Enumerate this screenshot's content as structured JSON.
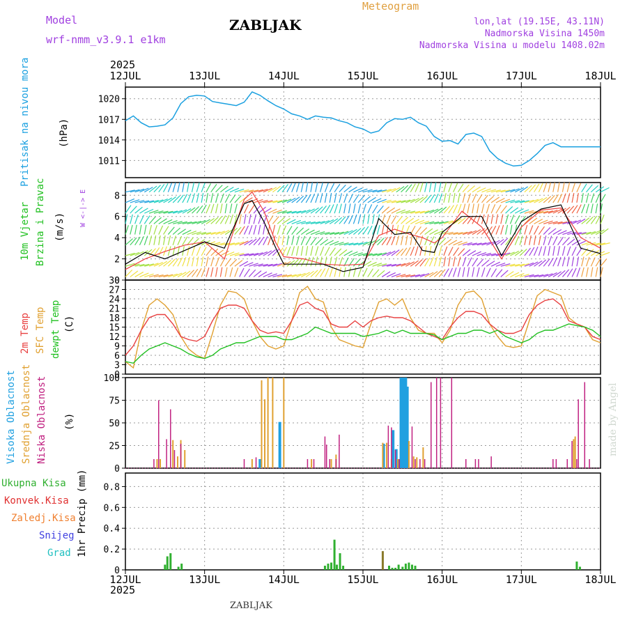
{
  "header": {
    "model_label": "Model",
    "model_name": "wrf-nmm_v3.9.1  e1km",
    "station": "ZABLJAK",
    "meteogram": "Meteogram",
    "lonlat": "lon,lat (19.15E, 43.11N)",
    "altitude": "Nadmorska Visina 1450m",
    "model_altitude": "Nadmorska Visina u modelu 1408.02m",
    "year_top": "2025",
    "year_bottom": "2025",
    "footer": "ZABLJAK",
    "credit": "made by Angel"
  },
  "colors": {
    "pressure": "#1aa0e0",
    "wind_speed": "#000000",
    "wind_gust": "#f04040",
    "t2m": "#e84040",
    "tsfc": "#e0a030",
    "dewpt": "#20c020",
    "high_cloud": "#20a0e0",
    "mid_cloud": "#e0a030",
    "low_cloud": "#c02080",
    "total_precip": "#30b030",
    "conv_precip": "#e03030",
    "frozen_precip": "#f08030",
    "snow": "#4040e0",
    "graupel": "#20c0c0"
  },
  "chart_data": [
    {
      "type": "line",
      "panel": "pressure",
      "ylabel_left": "Pritisak na nivou mora",
      "ylabel_unit": "(hPa)",
      "x_ticks": [
        "12JUL",
        "13JUL",
        "14JUL",
        "15JUL",
        "16JUL",
        "17JUL",
        "18JUL"
      ],
      "xlim_days": [
        0,
        6
      ],
      "y_ticks": [
        1011,
        1014,
        1017,
        1020
      ],
      "ylim": [
        1008.5,
        1021.7
      ],
      "series": [
        {
          "x": [
            0.0,
            0.1,
            0.2,
            0.3,
            0.4,
            0.5,
            0.6,
            0.7,
            0.8,
            0.9,
            1.0,
            1.1,
            1.2,
            1.3,
            1.4,
            1.5,
            1.6,
            1.7,
            1.8,
            1.9,
            2.0,
            2.1,
            2.2,
            2.3,
            2.4,
            2.5,
            2.6,
            2.7,
            2.8,
            2.9,
            3.0,
            3.1,
            3.2,
            3.3,
            3.4,
            3.5,
            3.6,
            3.7,
            3.8,
            3.9,
            4.0,
            4.1,
            4.2,
            4.3,
            4.4,
            4.5,
            4.6,
            4.7,
            4.8,
            4.9,
            5.0,
            5.1,
            5.2,
            5.3,
            5.4,
            5.5,
            5.6,
            5.7,
            5.8,
            5.9,
            6.0
          ],
          "values": [
            1016.8,
            1017.5,
            1016.5,
            1015.9,
            1016.0,
            1016.2,
            1017.2,
            1019.3,
            1020.3,
            1020.5,
            1020.4,
            1019.6,
            1019.4,
            1019.2,
            1019.0,
            1019.5,
            1021.0,
            1020.5,
            1019.7,
            1019.0,
            1018.5,
            1017.8,
            1017.5,
            1017.0,
            1017.5,
            1017.3,
            1017.2,
            1016.8,
            1016.5,
            1015.9,
            1015.6,
            1015.0,
            1015.3,
            1016.5,
            1017.1,
            1017.0,
            1017.3,
            1016.5,
            1016.0,
            1014.5,
            1013.8,
            1013.9,
            1013.4,
            1014.8,
            1015.0,
            1014.5,
            1012.4,
            1011.3,
            1010.6,
            1010.2,
            1010.3,
            1011.0,
            1012.0,
            1013.2,
            1013.6,
            1013.0,
            1013.0,
            1013.0,
            1013.0,
            1013.0,
            1013.0
          ]
        }
      ]
    },
    {
      "type": "line",
      "panel": "wind",
      "ylabel_left": "10m Vjetar",
      "ylabel_left2": "Brzina i Pravac",
      "ylabel_unit": "(m/s)",
      "compass": "W <-|-> E",
      "y_ticks": [
        0,
        2,
        4,
        6,
        8
      ],
      "ylim": [
        0,
        9.2
      ],
      "series": [
        {
          "name": "speed",
          "x": [
            0.0,
            0.25,
            0.5,
            0.75,
            1.0,
            1.25,
            1.4,
            1.5,
            1.6,
            1.75,
            1.9,
            2.0,
            2.25,
            2.5,
            2.75,
            3.0,
            3.2,
            3.4,
            3.6,
            3.75,
            3.9,
            4.0,
            4.25,
            4.5,
            4.75,
            5.0,
            5.25,
            5.5,
            5.75,
            6.0
          ],
          "values": [
            1.5,
            2.6,
            2.0,
            2.8,
            3.6,
            3.0,
            5.5,
            7.2,
            7.5,
            5.5,
            3.0,
            1.5,
            1.5,
            1.5,
            0.8,
            1.2,
            5.8,
            4.3,
            4.5,
            2.8,
            2.6,
            4.5,
            6.0,
            6.0,
            2.3,
            5.5,
            6.7,
            7.1,
            3.0,
            2.5
          ]
        },
        {
          "name": "gust",
          "x": [
            0.0,
            0.25,
            0.5,
            0.75,
            1.0,
            1.25,
            1.4,
            1.5,
            1.6,
            1.75,
            1.9,
            2.0,
            2.25,
            2.5,
            2.75,
            3.0,
            3.2,
            3.4,
            3.6,
            3.75,
            3.9,
            4.0,
            4.25,
            4.5,
            4.75,
            5.0,
            5.25,
            5.5,
            5.75,
            6.0
          ],
          "values": [
            1.0,
            2.0,
            2.7,
            3.3,
            3.6,
            2.0,
            5.4,
            7.6,
            8.3,
            6.5,
            3.5,
            2.2,
            2.0,
            1.5,
            1.4,
            1.5,
            4.2,
            4.8,
            4.3,
            4.0,
            3.5,
            4.0,
            6.5,
            5.0,
            2.0,
            5.0,
            6.6,
            6.8,
            4.0,
            3.0
          ]
        }
      ]
    },
    {
      "type": "line",
      "panel": "temperature",
      "ylabel_left": "2m Temp",
      "ylabel_left2": "SFC Temp",
      "ylabel_left3": "dewpt Temp",
      "ylabel_unit": "(C)",
      "y_ticks": [
        0,
        3,
        6,
        9,
        12,
        15,
        18,
        21,
        24,
        27,
        30
      ],
      "ylim": [
        0,
        30
      ],
      "series": [
        {
          "name": "2m",
          "x": [
            0.0,
            0.1,
            0.2,
            0.3,
            0.4,
            0.5,
            0.6,
            0.7,
            0.8,
            0.9,
            1.0,
            1.1,
            1.2,
            1.3,
            1.4,
            1.5,
            1.6,
            1.7,
            1.8,
            1.9,
            2.0,
            2.1,
            2.2,
            2.3,
            2.4,
            2.5,
            2.6,
            2.7,
            2.8,
            2.9,
            3.0,
            3.1,
            3.2,
            3.3,
            3.4,
            3.5,
            3.6,
            3.7,
            3.8,
            3.9,
            4.0,
            4.1,
            4.2,
            4.3,
            4.4,
            4.5,
            4.6,
            4.7,
            4.8,
            4.9,
            5.0,
            5.1,
            5.2,
            5.3,
            5.4,
            5.5,
            5.6,
            5.7,
            5.8,
            5.9,
            6.0
          ],
          "values": [
            6,
            9,
            14,
            18,
            19,
            19,
            16,
            12,
            11,
            10.5,
            12,
            17,
            21,
            22,
            22,
            21,
            17,
            14,
            13,
            13.5,
            13,
            17,
            22,
            23,
            21,
            20,
            16,
            15,
            15,
            17,
            15,
            17,
            18,
            18.5,
            18,
            18,
            17,
            15,
            13,
            12,
            11,
            15,
            18,
            20,
            20,
            19,
            16,
            14,
            13,
            13,
            14,
            19,
            22,
            23.5,
            24,
            22,
            17,
            16,
            15,
            12,
            11
          ]
        },
        {
          "name": "sfc",
          "x": [
            0.0,
            0.1,
            0.2,
            0.3,
            0.4,
            0.5,
            0.6,
            0.7,
            0.8,
            0.9,
            1.0,
            1.1,
            1.2,
            1.3,
            1.4,
            1.5,
            1.6,
            1.7,
            1.8,
            1.9,
            2.0,
            2.1,
            2.2,
            2.3,
            2.4,
            2.5,
            2.6,
            2.7,
            2.8,
            2.9,
            3.0,
            3.1,
            3.2,
            3.3,
            3.4,
            3.5,
            3.6,
            3.7,
            3.8,
            3.9,
            4.0,
            4.1,
            4.2,
            4.3,
            4.4,
            4.5,
            4.6,
            4.7,
            4.8,
            4.9,
            5.0,
            5.1,
            5.2,
            5.3,
            5.4,
            5.5,
            5.6,
            5.7,
            5.8,
            5.9,
            6.0
          ],
          "values": [
            4,
            2,
            14,
            22,
            24,
            22,
            19,
            12,
            8,
            6,
            5,
            13,
            22,
            26.5,
            26,
            24,
            17,
            12,
            9,
            8,
            9,
            17,
            26,
            28,
            24,
            23,
            15,
            11,
            10,
            9,
            8.5,
            16,
            23,
            24,
            22,
            24,
            18,
            14,
            13,
            13,
            10,
            14,
            22,
            26,
            26.5,
            24,
            16,
            12,
            9,
            8.5,
            9,
            17,
            25,
            27,
            26,
            25,
            18,
            16,
            15,
            11,
            10
          ]
        },
        {
          "name": "dewpt",
          "x": [
            0.0,
            0.1,
            0.2,
            0.3,
            0.4,
            0.5,
            0.6,
            0.7,
            0.8,
            0.9,
            1.0,
            1.1,
            1.2,
            1.3,
            1.4,
            1.5,
            1.6,
            1.7,
            1.8,
            1.9,
            2.0,
            2.1,
            2.2,
            2.3,
            2.4,
            2.5,
            2.6,
            2.7,
            2.8,
            2.9,
            3.0,
            3.1,
            3.2,
            3.3,
            3.4,
            3.5,
            3.6,
            3.7,
            3.8,
            3.9,
            4.0,
            4.1,
            4.2,
            4.3,
            4.4,
            4.5,
            4.6,
            4.7,
            4.8,
            4.9,
            5.0,
            5.1,
            5.2,
            5.3,
            5.4,
            5.5,
            5.6,
            5.7,
            5.8,
            5.9,
            6.0
          ],
          "values": [
            4,
            3.5,
            6,
            8,
            9,
            10,
            9,
            8,
            6.5,
            5.5,
            5,
            6,
            8,
            9,
            10,
            10,
            11,
            12,
            12,
            12,
            11,
            11,
            12,
            13,
            15,
            14,
            13,
            13,
            13,
            13,
            12,
            12.5,
            13,
            14,
            13,
            14,
            13,
            13,
            13,
            12.5,
            11,
            12,
            13,
            13,
            14,
            14,
            13,
            14,
            12,
            11,
            10,
            11,
            13,
            14,
            14,
            15,
            16,
            15.5,
            15,
            14,
            12
          ]
        }
      ]
    },
    {
      "type": "bar",
      "panel": "cloud",
      "ylabel_left": "Visoka Oblacnost",
      "ylabel_left2": "Srednja Oblacnost",
      "ylabel_left3": "Niska Oblacnost",
      "ylabel_unit": "(%)",
      "y_ticks": [
        0,
        25,
        50,
        75,
        100
      ],
      "ylim": [
        0,
        100
      ],
      "series": [
        {
          "name": "high",
          "x": [
            1.7,
            1.95,
            3.26,
            3.38,
            3.42,
            3.46,
            3.48,
            3.5,
            3.52,
            3.54,
            3.56
          ],
          "values": [
            10,
            51,
            27,
            42,
            21,
            10,
            100,
            100,
            100,
            100,
            90
          ]
        },
        {
          "name": "mid",
          "x": [
            0.4,
            0.44,
            0.6,
            0.66,
            0.7,
            0.75,
            1.6,
            1.72,
            1.76,
            1.8,
            1.86,
            2.0,
            2.35,
            2.6,
            2.66,
            3.25,
            3.3,
            3.36,
            3.44,
            3.58,
            3.64,
            3.68,
            3.76,
            5.66,
            5.68
          ],
          "values": [
            10,
            10,
            31,
            13,
            31,
            20,
            10,
            97,
            76,
            100,
            100,
            100,
            10,
            10,
            15,
            28,
            28,
            10,
            10,
            30,
            13,
            12,
            23,
            32,
            35
          ]
        },
        {
          "name": "low",
          "x": [
            0.36,
            0.42,
            0.52,
            0.57,
            0.62,
            0.7,
            1.5,
            1.65,
            2.3,
            2.38,
            2.52,
            2.54,
            2.58,
            2.66,
            2.7,
            3.32,
            3.36,
            3.41,
            3.46,
            3.62,
            3.66,
            3.72,
            3.78,
            3.86,
            3.93,
            3.98,
            4.12,
            4.3,
            4.42,
            4.46,
            4.62,
            5.4,
            5.44,
            5.58,
            5.64,
            5.7,
            5.72,
            5.8,
            5.86
          ],
          "values": [
            10,
            75,
            32,
            65,
            20,
            27,
            10,
            12,
            10,
            10,
            35,
            26,
            10,
            10,
            37,
            47,
            45,
            20,
            10,
            46,
            10,
            10,
            10,
            95,
            100,
            100,
            100,
            10,
            10,
            10,
            13,
            10,
            10,
            10,
            30,
            10,
            76,
            95,
            10
          ]
        }
      ]
    },
    {
      "type": "bar",
      "panel": "precip",
      "ylabel_left": "Ukupna Kisa",
      "ylabel_left2": "Konvek.Kisa",
      "ylabel_left3": "Zaledj.Kisa",
      "ylabel_left4": "Snijeg",
      "ylabel_left5": "Grad",
      "ylabel_unit": "1hr Precip (mm)",
      "y_ticks": [
        0,
        0.2,
        0.4,
        0.6,
        0.8
      ],
      "ylim": [
        0,
        0.93
      ],
      "series": [
        {
          "name": "total",
          "x": [
            0.5,
            0.53,
            0.57,
            0.67,
            0.71,
            2.52,
            2.56,
            2.6,
            2.64,
            2.67,
            2.71,
            2.75,
            3.25,
            3.33,
            3.37,
            3.41,
            3.45,
            3.5,
            3.54,
            3.58,
            3.62,
            3.66,
            5.7,
            5.74
          ],
          "values": [
            0.05,
            0.13,
            0.16,
            0.03,
            0.06,
            0.04,
            0.06,
            0.07,
            0.29,
            0.05,
            0.16,
            0.04,
            0.18,
            0.04,
            0.02,
            0.02,
            0.05,
            0.03,
            0.06,
            0.07,
            0.05,
            0.04,
            0.08,
            0.03
          ]
        }
      ]
    }
  ]
}
